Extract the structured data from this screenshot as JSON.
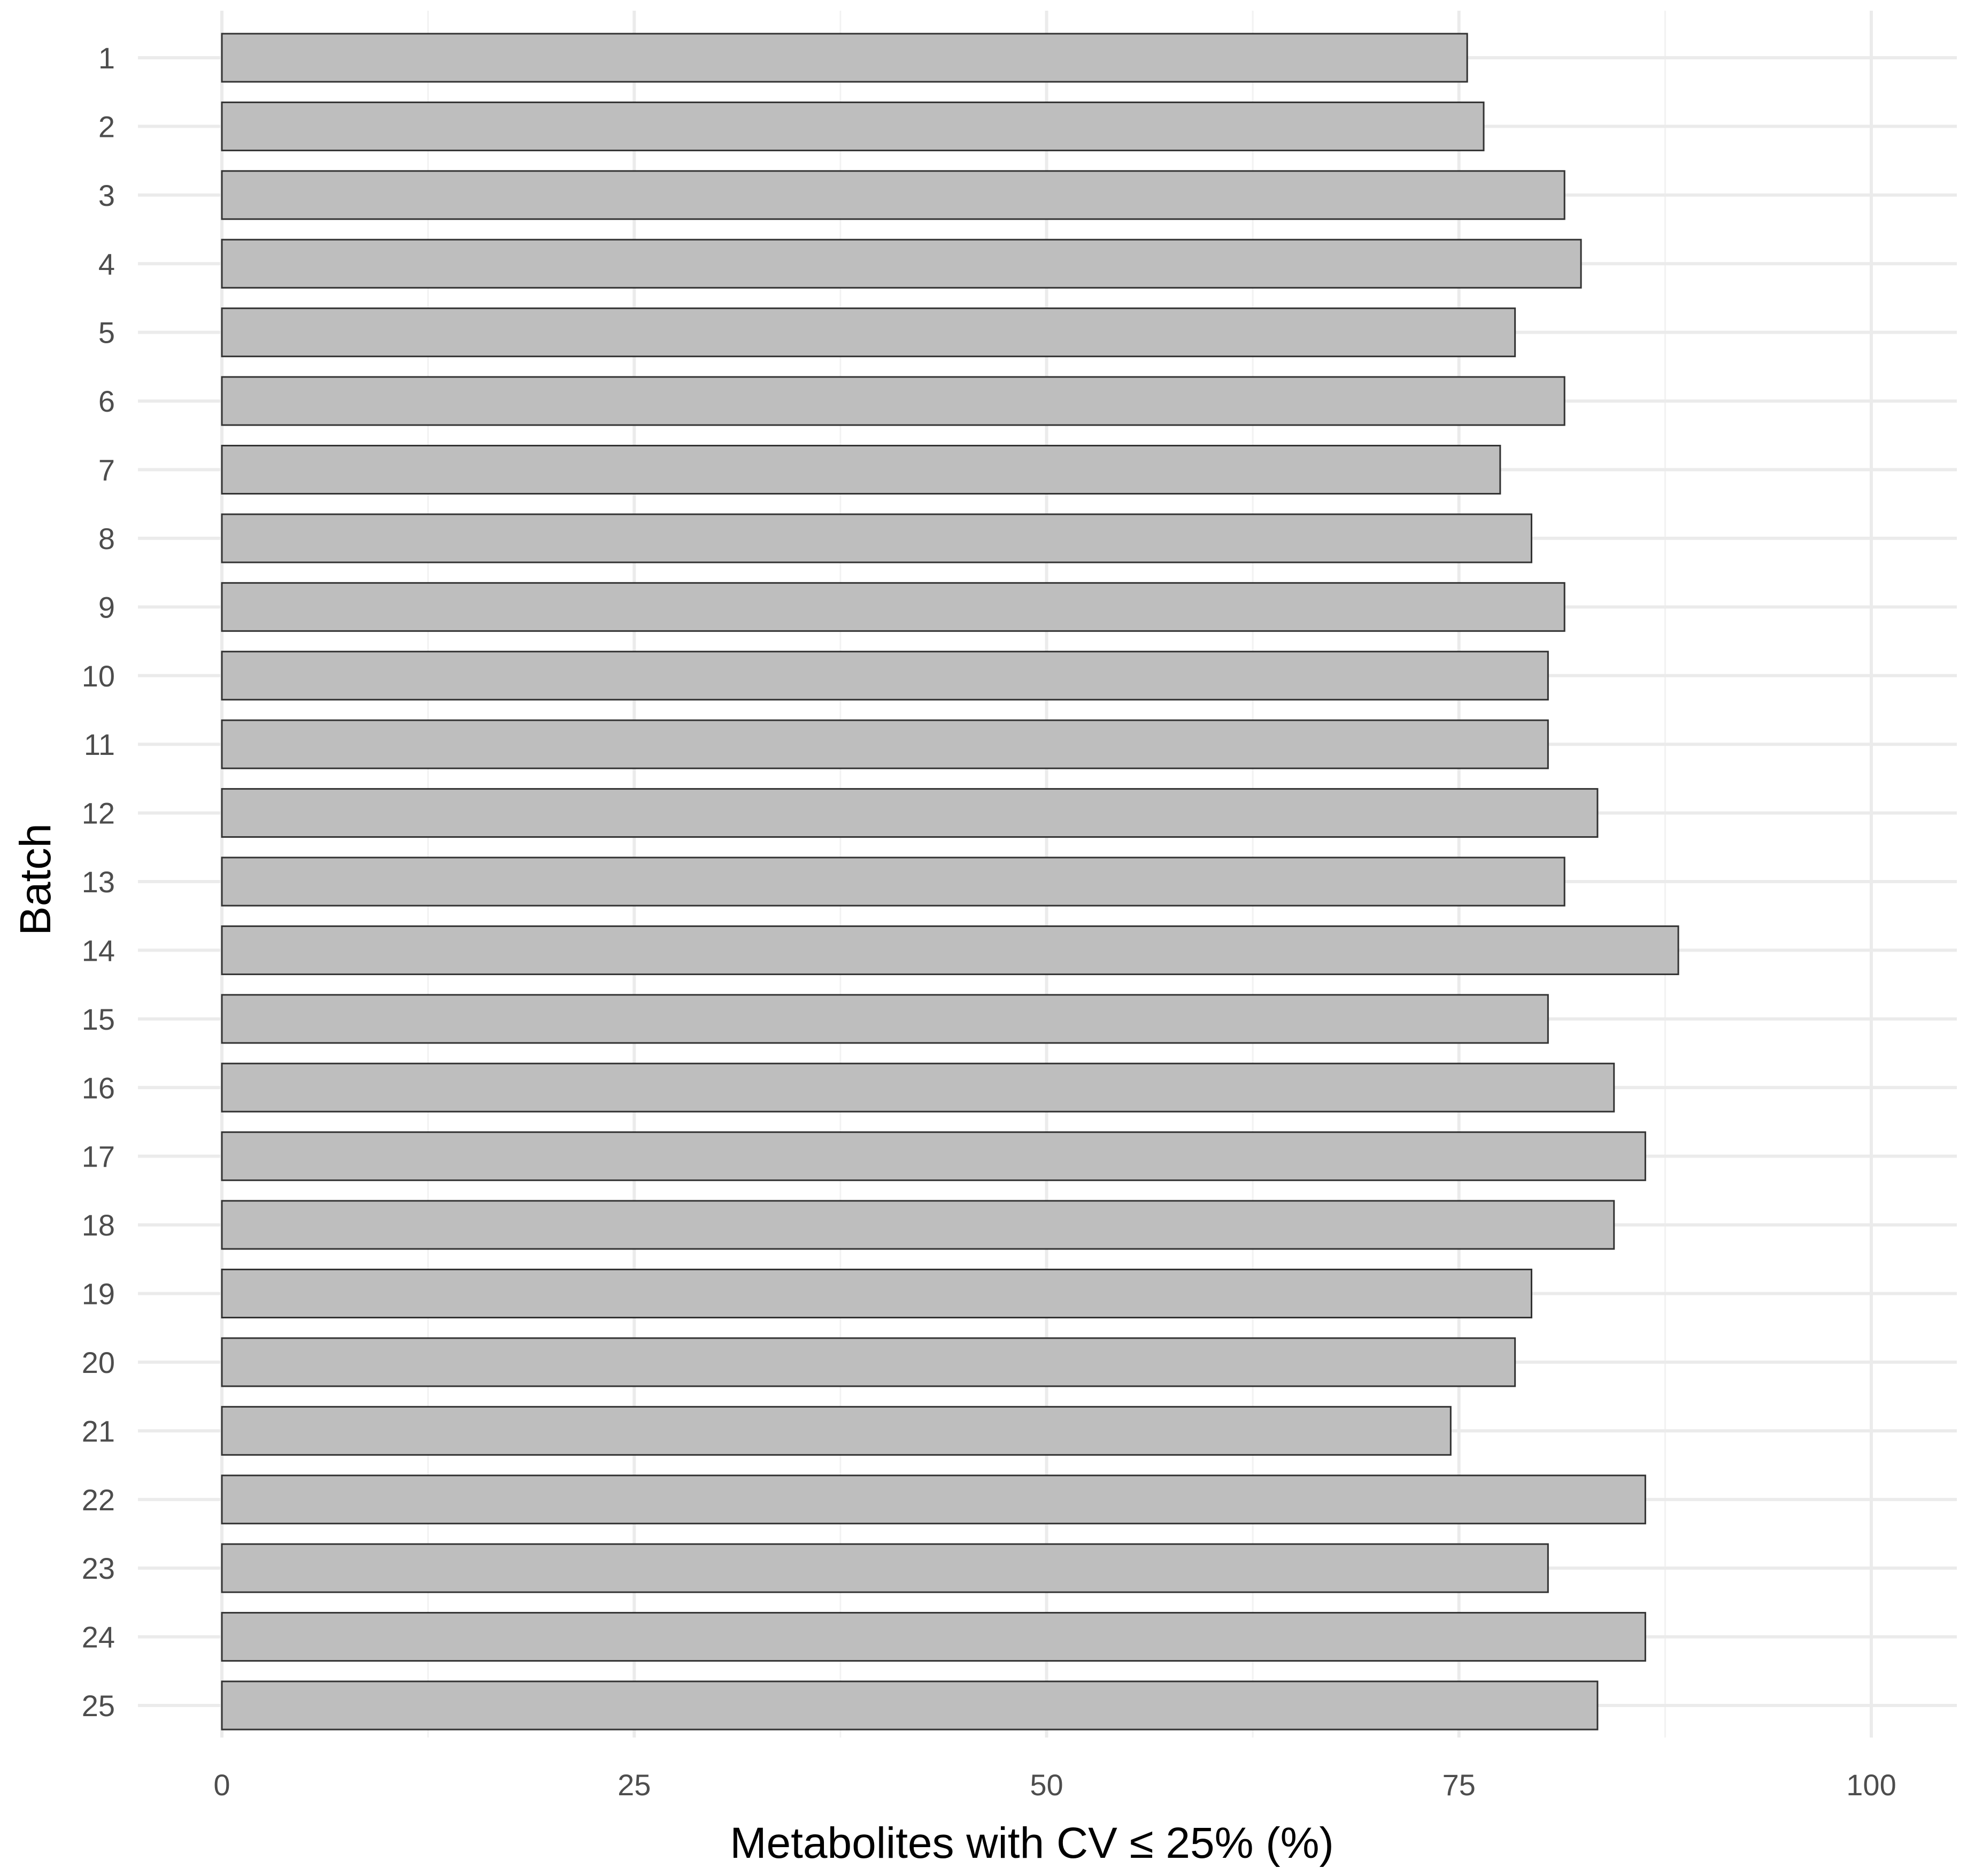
{
  "chart_data": {
    "type": "bar",
    "orientation": "horizontal",
    "title": "",
    "xlabel": "Metabolites with CV ≤ 25% (%)",
    "ylabel": "Batch",
    "xlim": [
      0,
      100
    ],
    "x_ticks": [
      "0",
      "25",
      "50",
      "75",
      "100"
    ],
    "categories": [
      "1",
      "2",
      "3",
      "4",
      "5",
      "6",
      "7",
      "8",
      "9",
      "10",
      "11",
      "12",
      "13",
      "14",
      "15",
      "16",
      "17",
      "18",
      "19",
      "20",
      "21",
      "22",
      "23",
      "24",
      "25"
    ],
    "values": [
      75.5,
      76.5,
      81.4,
      82.4,
      78.4,
      81.4,
      77.5,
      79.4,
      81.4,
      80.4,
      80.4,
      83.4,
      81.4,
      88.3,
      80.4,
      84.4,
      86.3,
      84.4,
      79.4,
      78.4,
      74.5,
      86.3,
      80.4,
      86.3,
      83.4
    ],
    "grid": true,
    "legend": "none",
    "bar_fill": "#bebebe",
    "bar_outline": "#333333"
  }
}
